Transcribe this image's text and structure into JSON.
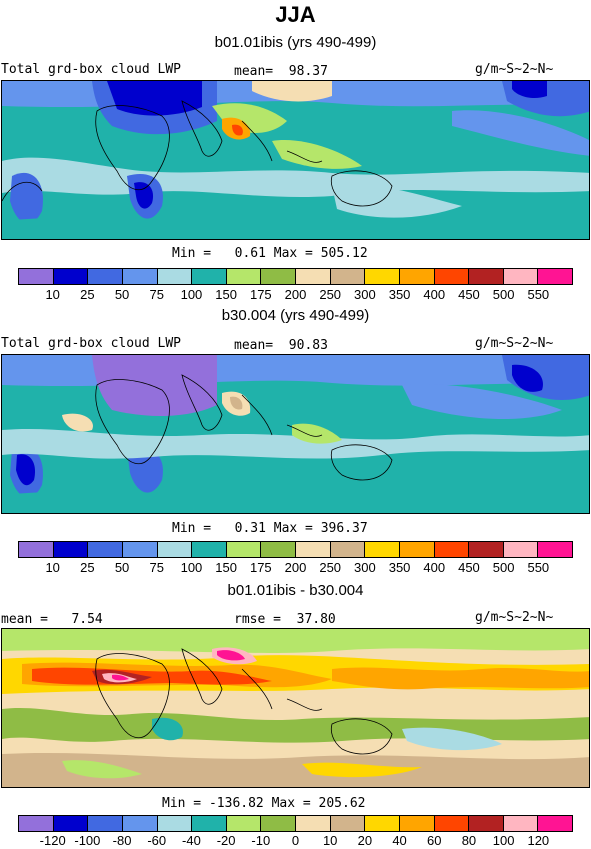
{
  "title": "JJA",
  "panels": [
    {
      "subtitle": "b01.01ibis (yrs 490-499)",
      "left_label": "Total grd-box cloud LWP",
      "center_label": "mean=  98.37",
      "units": "g/m~S~2~N~",
      "stats": "Min =   0.61 Max = 505.12",
      "colors": [
        "#9370db",
        "#0000cd",
        "#4169e1",
        "#6495ed",
        "#aadbe3",
        "#20b2aa",
        "#b5e66a",
        "#8fbc45",
        "#f5deb3",
        "#d2b48c",
        "#ffd700",
        "#ffa500",
        "#ff4500",
        "#b22222",
        "#ffb6c1",
        "#ff1493"
      ],
      "ticks": [
        "10",
        "25",
        "50",
        "75",
        "100",
        "150",
        "175",
        "200",
        "250",
        "300",
        "350",
        "400",
        "450",
        "500",
        "550"
      ]
    },
    {
      "subtitle": "b30.004 (yrs 490-499)",
      "left_label": "Total grd-box cloud LWP",
      "center_label": "mean=  90.83",
      "units": "g/m~S~2~N~",
      "stats": "Min =   0.31 Max = 396.37",
      "colors": [
        "#9370db",
        "#0000cd",
        "#4169e1",
        "#6495ed",
        "#aadbe3",
        "#20b2aa",
        "#b5e66a",
        "#8fbc45",
        "#f5deb3",
        "#d2b48c",
        "#ffd700",
        "#ffa500",
        "#ff4500",
        "#b22222",
        "#ffb6c1",
        "#ff1493"
      ],
      "ticks": [
        "10",
        "25",
        "50",
        "75",
        "100",
        "150",
        "175",
        "200",
        "250",
        "300",
        "350",
        "400",
        "450",
        "500",
        "550"
      ]
    },
    {
      "subtitle": "b01.01ibis - b30.004",
      "left_label": "mean =   7.54",
      "center_label": "rmse =  37.80",
      "units": "g/m~S~2~N~",
      "stats": "Min = -136.82 Max = 205.62",
      "colors": [
        "#9370db",
        "#0000cd",
        "#4169e1",
        "#6495ed",
        "#aadbe3",
        "#20b2aa",
        "#b5e66a",
        "#8fbc45",
        "#f5deb3",
        "#d2b48c",
        "#ffd700",
        "#ffa500",
        "#ff4500",
        "#b22222",
        "#ffb6c1",
        "#ff1493"
      ],
      "ticks": [
        "-120",
        "-100",
        "-80",
        "-60",
        "-40",
        "-20",
        "-10",
        "0",
        "10",
        "20",
        "40",
        "60",
        "80",
        "100",
        "120"
      ]
    }
  ]
}
